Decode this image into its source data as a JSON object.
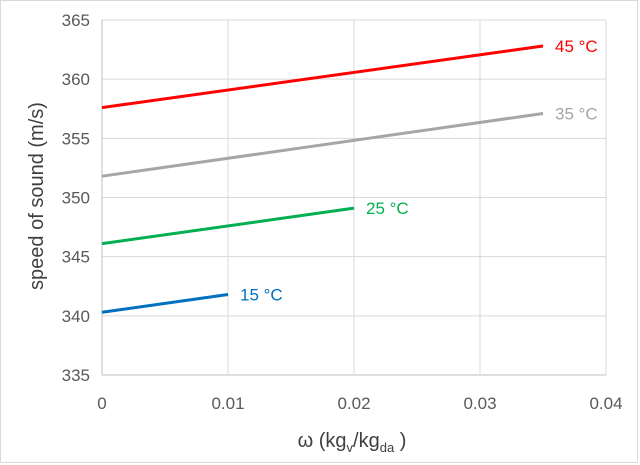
{
  "chart_data": {
    "type": "line",
    "xlabel": {
      "main": "ω (kg",
      "sub1": "v",
      "slash": "/kg",
      "sub2": "da",
      "close": " )"
    },
    "ylabel": "speed of sound (m/s)",
    "xlim": [
      0,
      0.04
    ],
    "ylim": [
      335,
      365
    ],
    "x_ticks": [
      0,
      0.01,
      0.02,
      0.03,
      0.04
    ],
    "x_tick_labels": [
      "0",
      "0.01",
      "0.02",
      "0.03",
      "0.04"
    ],
    "y_ticks": [
      335,
      340,
      345,
      350,
      355,
      360,
      365
    ],
    "y_tick_labels": [
      "335",
      "340",
      "345",
      "350",
      "355",
      "360",
      "365"
    ],
    "grid": true,
    "series": [
      {
        "name": "15 °C",
        "color": "#0070c0",
        "x": [
          0,
          0.01
        ],
        "y": [
          340.3,
          341.8
        ]
      },
      {
        "name": "25 °C",
        "color": "#00b050",
        "x": [
          0,
          0.02
        ],
        "y": [
          346.1,
          349.1
        ]
      },
      {
        "name": "35 °C",
        "color": "#a6a6a6",
        "x": [
          0,
          0.035
        ],
        "y": [
          351.8,
          357.1
        ]
      },
      {
        "name": "45 °C",
        "color": "#ff0000",
        "x": [
          0,
          0.035
        ],
        "y": [
          357.6,
          362.8
        ]
      }
    ]
  }
}
